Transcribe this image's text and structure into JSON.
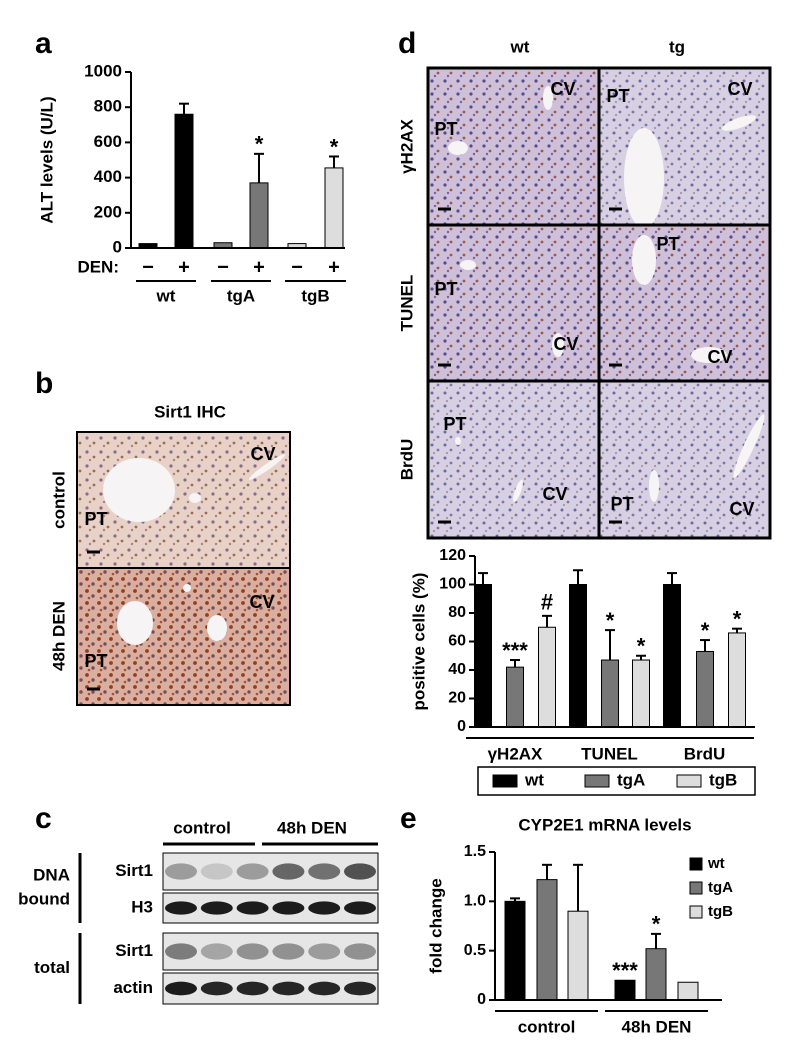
{
  "chart_data": [
    {
      "type": "bar",
      "panel_label": "a",
      "y_label": "ALT levels (U/L)",
      "category_title": "DEN:",
      "categories": [
        "−",
        "+",
        "−",
        "+",
        "−",
        "+"
      ],
      "groups": [
        "wt",
        "tgA",
        "tgB"
      ],
      "values": [
        25,
        760,
        30,
        370,
        25,
        455
      ],
      "errors": [
        null,
        60,
        null,
        165,
        null,
        65
      ],
      "colors": [
        "#000000",
        "#000000",
        "#777777",
        "#777777",
        "#dddddd",
        "#dddddd"
      ],
      "significance": [
        null,
        null,
        null,
        "*",
        null,
        "*"
      ],
      "ylim": [
        0,
        1000
      ],
      "yticks": [
        0,
        200,
        400,
        600,
        800,
        1000
      ]
    },
    {
      "type": "bar",
      "y_label": "positive cells (%)",
      "categories": [
        "γH2AX",
        "TUNEL",
        "BrdU"
      ],
      "series": [
        {
          "name": "wt",
          "color": "#000000",
          "values": [
            100,
            100,
            100
          ],
          "errors": [
            8,
            10,
            8
          ],
          "significance": [
            null,
            null,
            null
          ]
        },
        {
          "name": "tgA",
          "color": "#777777",
          "values": [
            42,
            47,
            53
          ],
          "errors": [
            5,
            21,
            8
          ],
          "significance": [
            "***",
            "*",
            "*"
          ]
        },
        {
          "name": "tgB",
          "color": "#dddddd",
          "values": [
            70,
            47,
            66
          ],
          "errors": [
            8,
            3,
            3
          ],
          "significance": [
            "#",
            "*",
            "*"
          ]
        }
      ],
      "ylim": [
        0,
        120
      ],
      "yticks": [
        0,
        20,
        40,
        60,
        80,
        100,
        120
      ],
      "legend": "bottom"
    },
    {
      "type": "bar",
      "panel_label": "e",
      "title": "CYP2E1 mRNA levels",
      "y_label": "fold change",
      "categories": [
        "control",
        "48h DEN"
      ],
      "series": [
        {
          "name": "wt",
          "color": "#000000",
          "values": [
            1.0,
            0.2
          ],
          "errors": [
            0.03,
            null
          ],
          "significance": [
            null,
            "***"
          ]
        },
        {
          "name": "tgA",
          "color": "#777777",
          "values": [
            1.22,
            0.52
          ],
          "errors": [
            0.15,
            0.15
          ],
          "significance": [
            null,
            "*"
          ]
        },
        {
          "name": "tgB",
          "color": "#dddddd",
          "values": [
            0.9,
            0.18
          ],
          "errors": [
            0.47,
            null
          ],
          "significance": [
            null,
            null
          ]
        }
      ],
      "ylim": [
        0,
        1.5
      ],
      "yticks": [
        0,
        0.5,
        {
          "value": 1,
          "label": "1.0"
        },
        1.5
      ],
      "legend": "upper right"
    }
  ],
  "panel_b": {
    "label": "b",
    "title": "Sirt1 IHC",
    "rows": [
      {
        "label": "control",
        "annotations": [
          "CV",
          "PT"
        ]
      },
      {
        "label": "48h DEN",
        "annotations": [
          "CV",
          "PT"
        ]
      }
    ]
  },
  "panel_c": {
    "label": "c",
    "columns": [
      "control",
      "48h DEN"
    ],
    "groups": [
      {
        "label_lines": [
          "DNA",
          "bound"
        ],
        "rows": [
          "Sirt1",
          "H3"
        ]
      },
      {
        "label_lines": [
          "total"
        ],
        "rows": [
          "Sirt1",
          "actin"
        ]
      }
    ]
  },
  "panel_d": {
    "label": "d",
    "columns": [
      "wt",
      "tg"
    ],
    "rows": [
      {
        "label": "γH2AX",
        "annotations": [
          [
            "CV",
            "PT"
          ],
          [
            "PT",
            "CV"
          ]
        ]
      },
      {
        "label": "TUNEL",
        "annotations": [
          [
            "PT",
            "CV"
          ],
          [
            "PT",
            "CV"
          ]
        ]
      },
      {
        "label": "BrdU",
        "annotations": [
          [
            "PT",
            "CV"
          ],
          [
            "PT",
            "CV"
          ]
        ]
      }
    ]
  }
}
